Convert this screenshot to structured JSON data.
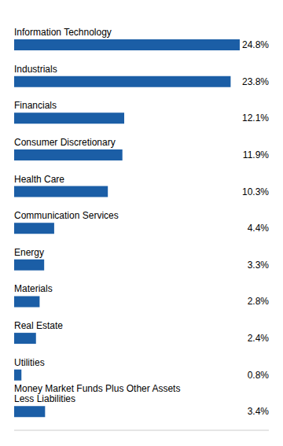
{
  "chart_data": {
    "type": "bar",
    "orientation": "horizontal",
    "categories": [
      "Information Technology",
      "Industrials",
      "Financials",
      "Consumer Discretionary",
      "Health Care",
      "Communication Services",
      "Energy",
      "Materials",
      "Real Estate",
      "Utilities",
      "Money Market Funds Plus Other Assets\nLess Liabilities"
    ],
    "values": [
      24.8,
      23.8,
      12.1,
      11.9,
      10.3,
      4.4,
      3.3,
      2.8,
      2.4,
      0.8,
      3.4
    ],
    "value_labels": [
      "24.8%",
      "23.8%",
      "12.1%",
      "11.9%",
      "10.3%",
      "4.4%",
      "3.3%",
      "2.8%",
      "2.4%",
      "0.8%",
      "3.4%"
    ],
    "data_labels": true,
    "color": "#1B5EA6",
    "xlim": [
      0,
      28
    ],
    "tick_labels": false,
    "grid": false
  }
}
